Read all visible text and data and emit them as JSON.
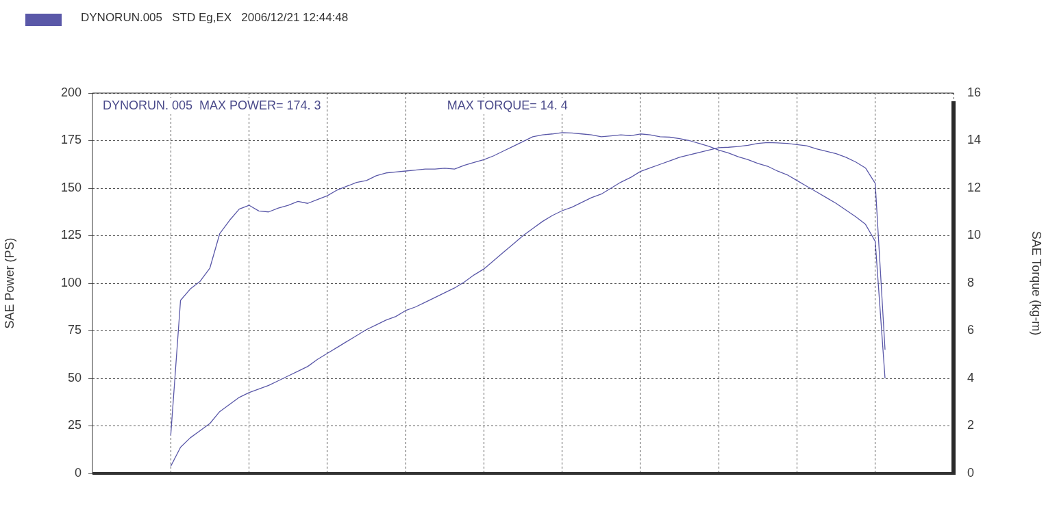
{
  "chart_data": {
    "type": "line",
    "title": "DYNORUN.005   STD Eg,EX   2006/12/21 12:44:48",
    "ylabel": "SAE Power (PS)",
    "y2label": "SAE Torque (kg-m)",
    "annotations": [
      "DYNORUN. 005  MAX POWER= 174. 3",
      "MAX TORQUE= 14. 4"
    ],
    "categories": [
      null,
      null,
      null,
      null,
      null,
      null,
      null,
      null,
      null,
      null,
      null,
      null,
      null,
      null,
      null,
      null,
      null,
      null,
      null,
      null,
      null,
      null,
      null,
      null,
      null,
      null,
      null,
      null,
      null,
      null,
      null,
      null,
      null,
      null,
      null,
      null,
      null,
      null,
      null,
      null,
      null,
      null,
      null,
      null,
      null,
      null,
      null,
      null,
      null,
      null,
      null,
      null,
      null,
      null,
      null,
      null,
      null,
      null,
      null,
      null,
      null,
      null,
      null,
      null,
      null,
      null,
      null,
      null,
      null,
      null,
      null,
      null,
      null,
      null,
      null,
      null,
      null,
      null,
      null,
      null,
      null,
      null,
      null,
      null,
      null,
      null,
      null,
      null,
      null
    ],
    "series": [
      {
        "color": "#5a58a8",
        "values": [
          null,
          null,
          null,
          null,
          null,
          null,
          null,
          null,
          20,
          91,
          97,
          101,
          108,
          126,
          133,
          139,
          141,
          138,
          137.5,
          139.5,
          141,
          143,
          142,
          144,
          146,
          149,
          151,
          153,
          154,
          156.5,
          158,
          158.5,
          159,
          159.5,
          160,
          160,
          160.5,
          160,
          162,
          163.5,
          165,
          167,
          169.5,
          172,
          174.5,
          177,
          178,
          178.5,
          179.2,
          179,
          178.5,
          178,
          177,
          177.5,
          178,
          177.6,
          178.5,
          178,
          177,
          176.8,
          176,
          175,
          173.5,
          172,
          170,
          168.5,
          166.5,
          165,
          163,
          161.5,
          159,
          157,
          154,
          151,
          148,
          145,
          142,
          138.5,
          135,
          131,
          122,
          50,
          null,
          null,
          null,
          null,
          null,
          null,
          null
        ]
      },
      {
        "color": "#5a58a8",
        "axis": "y2",
        "values": [
          null,
          null,
          null,
          null,
          null,
          null,
          null,
          null,
          0.3,
          1.1,
          1.5,
          1.8,
          2.1,
          2.6,
          2.9,
          3.2,
          3.4,
          3.55,
          3.7,
          3.9,
          4.1,
          4.3,
          4.5,
          4.8,
          5.05,
          5.3,
          5.55,
          5.8,
          6.05,
          6.25,
          6.45,
          6.6,
          6.85,
          7.0,
          7.2,
          7.4,
          7.6,
          7.8,
          8.05,
          8.35,
          8.6,
          8.95,
          9.3,
          9.65,
          10.0,
          10.3,
          10.6,
          10.85,
          11.05,
          11.2,
          11.4,
          11.6,
          11.75,
          12.0,
          12.25,
          12.45,
          12.7,
          12.85,
          13.0,
          13.15,
          13.3,
          13.4,
          13.5,
          13.6,
          13.7,
          13.72,
          13.75,
          13.8,
          13.88,
          13.92,
          13.9,
          13.88,
          13.83,
          13.78,
          13.65,
          13.55,
          13.45,
          13.3,
          13.1,
          12.85,
          12.2,
          5.2,
          null,
          null,
          null,
          null,
          null,
          null,
          null
        ]
      }
    ],
    "ylim": [
      0,
      200
    ],
    "yticks": [
      0,
      25,
      50,
      75,
      100,
      125,
      150,
      175,
      200
    ],
    "y2lim": [
      0,
      16
    ],
    "y2ticks": [
      0,
      2,
      4,
      6,
      8,
      10,
      12,
      14,
      16
    ],
    "grid": true,
    "marker": "none",
    "line_style": "solid"
  }
}
